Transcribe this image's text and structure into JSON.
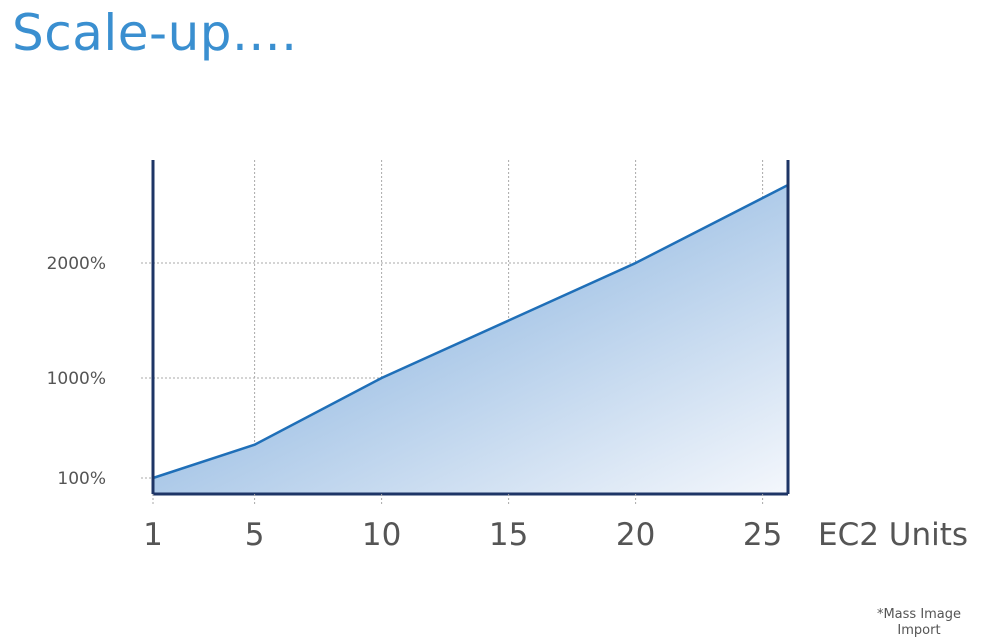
{
  "slide": {
    "title": "Scale-up....",
    "footnote": "*Mass Image Import"
  },
  "chart_data": {
    "type": "area",
    "title": "",
    "xlabel": "EC2 Units",
    "ylabel": "",
    "x_ticks": [
      1,
      5,
      10,
      15,
      20,
      25
    ],
    "x_tick_labels": [
      "1",
      "5",
      "10",
      "15",
      "20",
      "25"
    ],
    "y_ticks": [
      100,
      1000,
      2000
    ],
    "y_tick_labels": [
      "100%",
      "1000%",
      "2000%"
    ],
    "xlim": [
      1,
      26
    ],
    "grid": true,
    "series": [
      {
        "values": [
          {
            "x": 1,
            "y": 100
          },
          {
            "x": 5,
            "y": 400
          },
          {
            "x": 10,
            "y": 1000
          },
          {
            "x": 15,
            "y": 1500
          },
          {
            "x": 20,
            "y": 2000
          },
          {
            "x": 26,
            "y": 2700
          }
        ]
      }
    ],
    "colors": {
      "line": "#1f6fb8",
      "fill_dark": "#6a9fd6",
      "fill_light": "#f4f7fc",
      "axis": "#1e3566",
      "grid": "#aaaaaa",
      "tick_text": "#555555"
    }
  }
}
